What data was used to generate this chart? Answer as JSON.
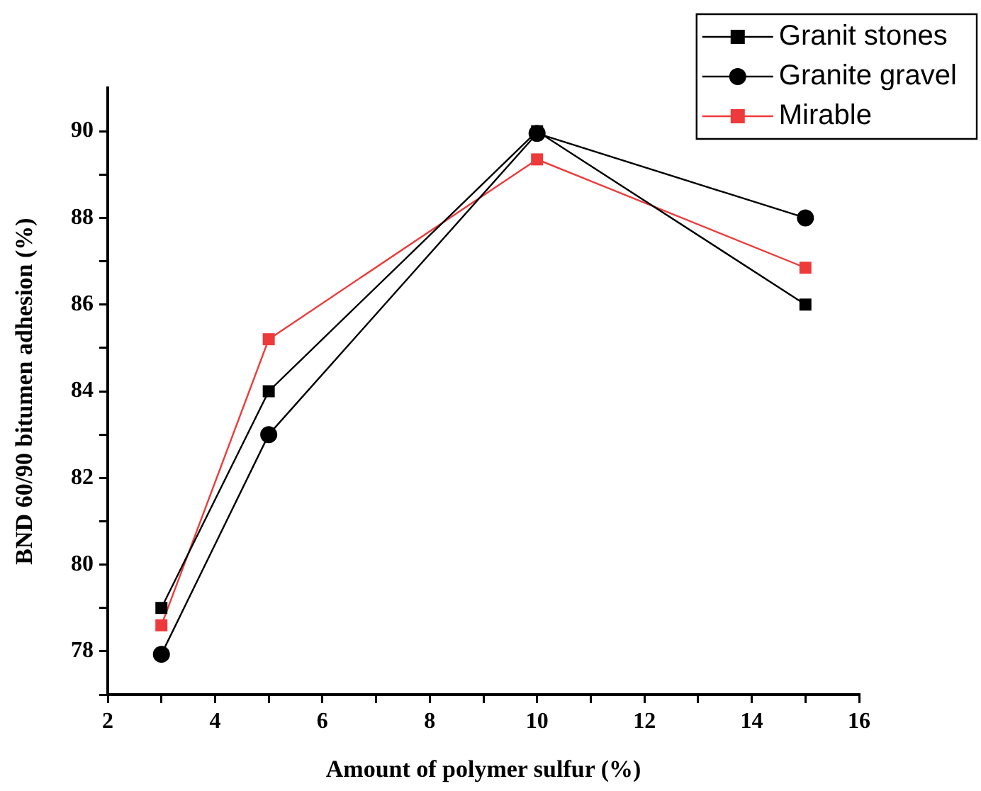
{
  "chart_data": {
    "type": "line",
    "xlabel": "Amount of polymer sulfur (%)",
    "ylabel": "BND 60/90 bitumen adhesion (%)",
    "x": [
      3,
      5,
      10,
      15
    ],
    "series": [
      {
        "name": "Granit stones",
        "color": "#000000",
        "marker": "square",
        "values": [
          79,
          84,
          90,
          86
        ]
      },
      {
        "name": "Granite gravel",
        "color": "#000000",
        "marker": "circle",
        "values": [
          77.93,
          83,
          89.95,
          88
        ]
      },
      {
        "name": "Mirable",
        "color": "#ee3a3a",
        "marker": "square",
        "values": [
          78.6,
          85.2,
          89.35,
          86.85
        ]
      }
    ],
    "xlim": [
      2,
      16
    ],
    "xticks": [
      2,
      {
        "value": 3,
        "label": null
      },
      4,
      {
        "value": 5,
        "label": null
      },
      6,
      {
        "value": 7,
        "label": null
      },
      8,
      {
        "value": 9,
        "label": null
      },
      10,
      {
        "value": 11,
        "label": null
      },
      12,
      {
        "value": 13,
        "label": null
      },
      14,
      {
        "value": 15,
        "label": null
      },
      16
    ],
    "ylim": [
      77,
      91
    ],
    "yticks": [
      {
        "value": 77,
        "label": null
      },
      78,
      {
        "value": 79,
        "label": null
      },
      80,
      {
        "value": 81,
        "label": null
      },
      82,
      {
        "value": 83,
        "label": null
      },
      84,
      {
        "value": 85,
        "label": null
      },
      86,
      {
        "value": 87,
        "label": null
      },
      88,
      {
        "value": 89,
        "label": null
      },
      90
    ],
    "grid": false,
    "legend": "top right",
    "line_style": "solid"
  }
}
